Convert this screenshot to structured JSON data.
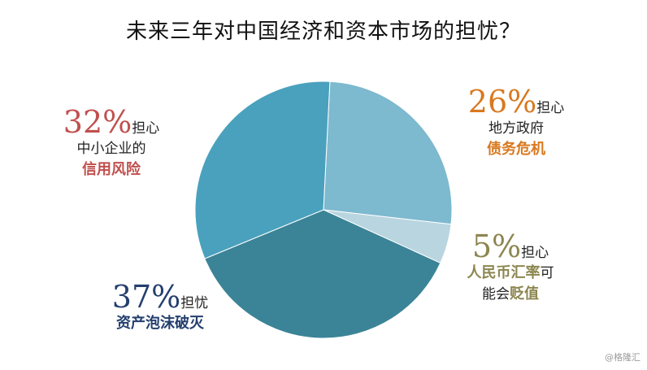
{
  "title": "未来三年对中国经济和资本市场的担忧？",
  "watermark": "@格隆汇",
  "chart_data": {
    "type": "pie",
    "title": "未来三年对中国经济和资本市场的担忧？",
    "slices": [
      {
        "value": 26,
        "label": "26%",
        "color": "#7db9cf"
      },
      {
        "value": 5,
        "label": "5%",
        "color": "#b9d5e0"
      },
      {
        "value": 37,
        "label": "37%",
        "color": "#3b8497"
      },
      {
        "value": 32,
        "label": "32%",
        "color": "#4aa1bd"
      }
    ]
  },
  "callouts": {
    "debt": {
      "pct": "26%",
      "suffix": "担心",
      "line1": "地方政府",
      "emph": "债务危机",
      "pct_color": "#d9781e",
      "emph_color": "#d9781e"
    },
    "fx": {
      "pct": "5%",
      "suffix": "担心",
      "line1_emph": "人民币汇率",
      "line1_rest": "可",
      "line2_plain": "能会",
      "line2_emph": "贬值",
      "pct_color": "#8c8650",
      "emph_color": "#8c8650"
    },
    "bubble": {
      "pct": "37%",
      "suffix": "担忧",
      "emph": "资产泡沫破灭",
      "pct_color": "#243f6e",
      "emph_color": "#243f6e"
    },
    "credit": {
      "pct": "32%",
      "suffix": "担心",
      "line1": "中小企业的",
      "emph": "信用风险",
      "pct_color": "#c0504d",
      "emph_color": "#c0504d"
    }
  }
}
